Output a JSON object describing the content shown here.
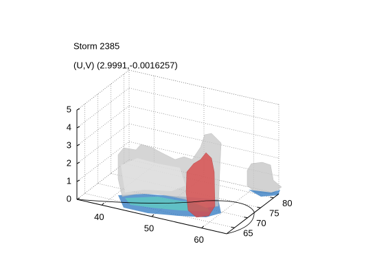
{
  "chart_data": {
    "type": "surface3d",
    "title": "Storm 2385",
    "subtitle": "(U,V) (2.9991,-0.0016257)",
    "xlim": [
      35,
      65
    ],
    "xticks": [
      40,
      50,
      60
    ],
    "ylim": [
      62,
      82
    ],
    "yticks": [
      65,
      70,
      75,
      80
    ],
    "zlim": [
      0,
      5
    ],
    "zticks": [
      0,
      1,
      2,
      3,
      4,
      5
    ],
    "grid": true
  }
}
